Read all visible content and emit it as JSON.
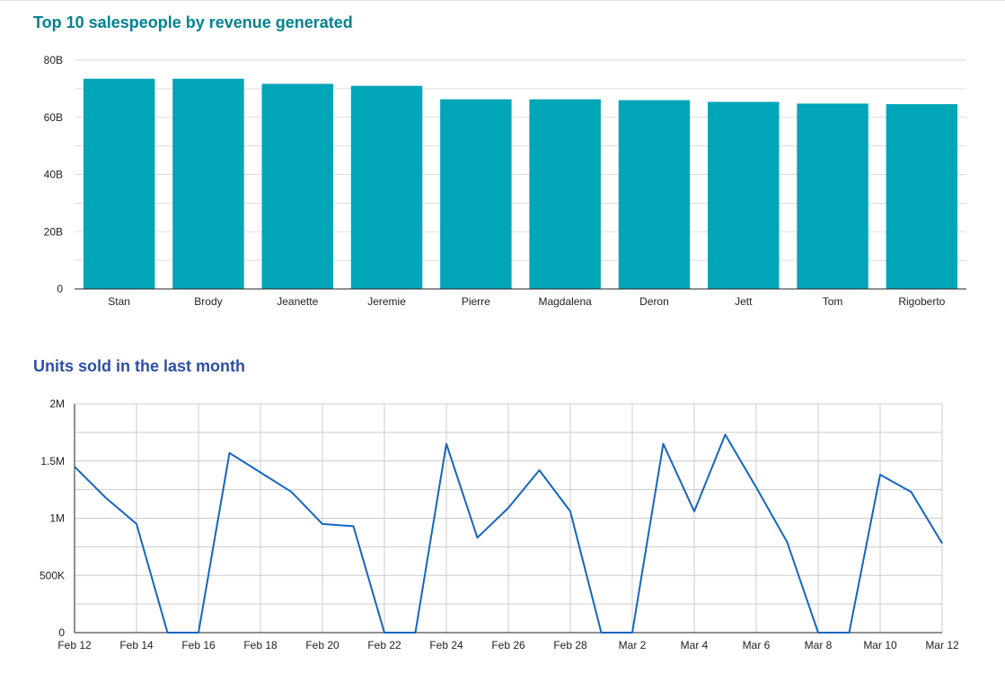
{
  "chart_data": [
    {
      "type": "bar",
      "title": "Top 10 salespeople by revenue generated",
      "categories": [
        "Stan",
        "Brody",
        "Jeanette",
        "Jeremie",
        "Pierre",
        "Magdalena",
        "Deron",
        "Jett",
        "Tom",
        "Rigoberto"
      ],
      "values": [
        73.5,
        73.5,
        71.7,
        71.0,
        66.3,
        66.3,
        66.0,
        65.4,
        64.8,
        64.6
      ],
      "value_unit": "B",
      "ylim": [
        0,
        80
      ],
      "yticks": [
        0,
        20,
        40,
        60,
        80
      ],
      "ytick_labels": [
        "0",
        "20B",
        "40B",
        "60B",
        "80B"
      ],
      "grid": true,
      "colors": {
        "bar": "#00a5b8",
        "title": "#00838f",
        "grid": "#dddddd"
      }
    },
    {
      "type": "line",
      "title": "Units sold in the last month",
      "x": [
        "Feb 12",
        "Feb 13",
        "Feb 14",
        "Feb 15",
        "Feb 16",
        "Feb 17",
        "Feb 18",
        "Feb 19",
        "Feb 20",
        "Feb 21",
        "Feb 22",
        "Feb 23",
        "Feb 24",
        "Feb 25",
        "Feb 26",
        "Feb 27",
        "Feb 28",
        "Mar 1",
        "Mar 2",
        "Mar 3",
        "Mar 4",
        "Mar 5",
        "Mar 6",
        "Mar 7",
        "Mar 8",
        "Mar 9",
        "Mar 10",
        "Mar 11",
        "Mar 12"
      ],
      "series": [
        {
          "values": [
            1450000,
            1180000,
            950000,
            0,
            0,
            1570000,
            1400000,
            1230000,
            950000,
            930000,
            0,
            0,
            1650000,
            830000,
            1090000,
            1420000,
            1060000,
            0,
            0,
            1650000,
            1060000,
            1730000,
            1270000,
            790000,
            0,
            0,
            1380000,
            1230000,
            780000
          ]
        }
      ],
      "xtick_labels": [
        "Feb 12",
        "Feb 14",
        "Feb 16",
        "Feb 18",
        "Feb 20",
        "Feb 22",
        "Feb 24",
        "Feb 26",
        "Feb 28",
        "Mar 2",
        "Mar 4",
        "Mar 6",
        "Mar 8",
        "Mar 10",
        "Mar 12"
      ],
      "ylim": [
        0,
        2000000
      ],
      "yticks": [
        0,
        500000,
        1000000,
        1500000,
        2000000
      ],
      "ytick_labels": [
        "0",
        "500K",
        "1M",
        "1.5M",
        "2M"
      ],
      "grid": true,
      "colors": {
        "line": "#1565c0",
        "title": "#2d4fa6",
        "grid": "#cccccc"
      }
    }
  ]
}
